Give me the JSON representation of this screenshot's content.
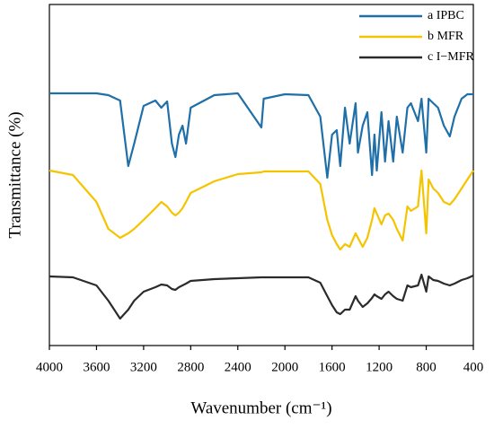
{
  "chart_data": {
    "type": "line",
    "xlabel": "Wavenumber (cm⁻¹)",
    "ylabel": "Transmittance (%)",
    "x": [
      4000,
      3800,
      3600,
      3500,
      3400,
      3330,
      3280,
      3200,
      3100,
      3050,
      3000,
      2960,
      2930,
      2900,
      2870,
      2840,
      2800,
      2600,
      2400,
      2200,
      2180,
      2000,
      1800,
      1700,
      1640,
      1600,
      1560,
      1530,
      1490,
      1450,
      1400,
      1380,
      1340,
      1300,
      1260,
      1240,
      1220,
      1180,
      1150,
      1120,
      1080,
      1050,
      1000,
      960,
      930,
      870,
      840,
      800,
      780,
      740,
      700,
      650,
      600,
      560,
      500,
      450,
      400
    ],
    "series": [
      {
        "name": "a IPBC",
        "color": "#1f6fa8",
        "values": [
          281,
          281,
          281,
          279,
          273,
          200,
          225,
          267,
          273,
          265,
          272,
          225,
          210,
          235,
          245,
          225,
          265,
          279,
          281,
          243,
          275,
          280,
          279,
          255,
          187,
          235,
          240,
          200,
          265,
          225,
          270,
          215,
          245,
          260,
          190,
          235,
          195,
          260,
          205,
          250,
          205,
          255,
          215,
          265,
          270,
          250,
          275,
          215,
          275,
          270,
          265,
          245,
          233,
          255,
          275,
          280,
          280
        ]
      },
      {
        "name": "b MFR",
        "color": "#f5c400",
        "values": [
          195,
          190,
          160,
          130,
          120,
          125,
          130,
          140,
          153,
          160,
          155,
          148,
          145,
          148,
          153,
          160,
          170,
          183,
          191,
          193,
          194,
          194,
          194,
          180,
          140,
          123,
          113,
          107,
          113,
          110,
          125,
          120,
          110,
          120,
          140,
          153,
          147,
          135,
          145,
          147,
          140,
          130,
          117,
          155,
          150,
          155,
          195,
          125,
          185,
          175,
          170,
          160,
          157,
          163,
          175,
          185,
          195
        ]
      },
      {
        "name": "c I−MFR",
        "color": "#2b2b2b",
        "values": [
          77,
          76,
          67,
          50,
          30,
          40,
          50,
          60,
          65,
          68,
          67,
          63,
          62,
          65,
          67,
          69,
          72,
          74,
          75,
          76,
          76,
          76,
          76,
          70,
          55,
          45,
          37,
          35,
          40,
          40,
          55,
          50,
          43,
          47,
          53,
          57,
          55,
          52,
          57,
          60,
          55,
          52,
          50,
          67,
          65,
          67,
          79,
          60,
          77,
          73,
          72,
          69,
          67,
          69,
          73,
          75,
          78
        ]
      }
    ],
    "xlim": [
      4000,
      400
    ],
    "xticks": [
      4000,
      3600,
      3200,
      2800,
      2400,
      2000,
      1600,
      1200,
      800,
      400
    ],
    "ylim": [
      0,
      380
    ],
    "legend": "upper right"
  }
}
